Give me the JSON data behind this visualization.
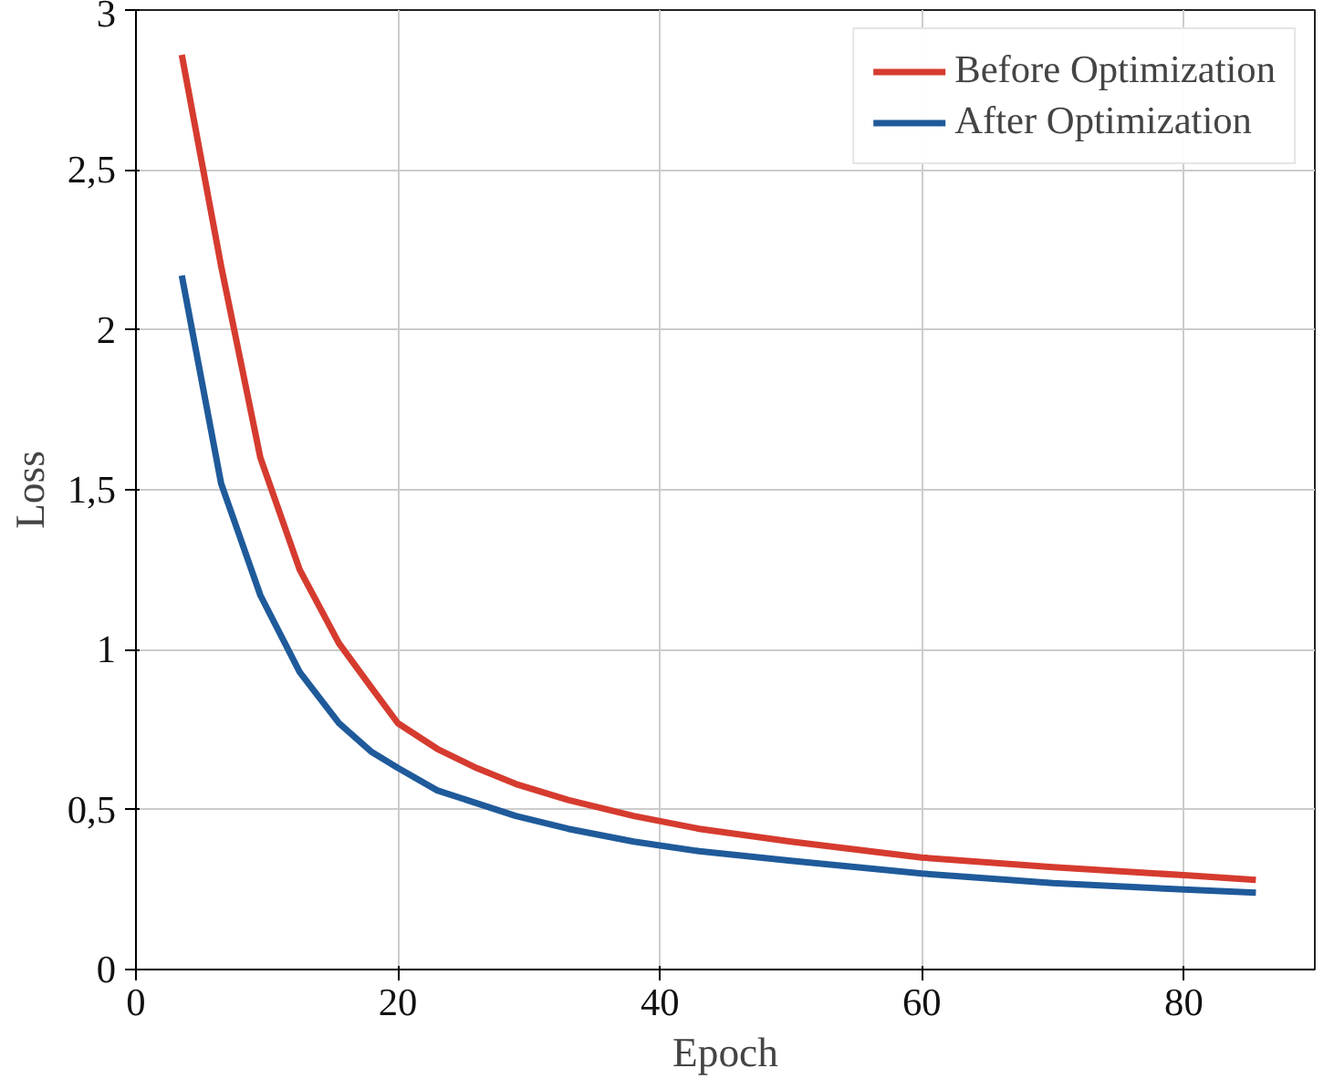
{
  "chart_data": {
    "type": "line",
    "xlabel": "Epoch",
    "ylabel": "Loss",
    "xlim": [
      0,
      90
    ],
    "ylim": [
      0,
      3
    ],
    "xticks": [
      0,
      20,
      40,
      60,
      80
    ],
    "yticks": [
      0,
      {
        "value": 0.5,
        "label": "0,5"
      },
      1,
      {
        "value": 1.5,
        "label": "1,5"
      },
      2,
      {
        "value": 2.5,
        "label": "2,5"
      },
      3
    ],
    "grid": true,
    "legend": "top right",
    "marker": "none",
    "line_style": "solid",
    "x": [
      3.5,
      6.5,
      9.5,
      12.5,
      15.5,
      18,
      20,
      23,
      26,
      29,
      33,
      38,
      43,
      50,
      60,
      70,
      80,
      85.5
    ],
    "series": [
      {
        "name": "Before Optimization",
        "color": "#d63b2f",
        "values": [
          2.86,
          2.2,
          1.6,
          1.25,
          1.02,
          0.88,
          0.77,
          0.69,
          0.63,
          0.58,
          0.53,
          0.48,
          0.44,
          0.4,
          0.35,
          0.32,
          0.295,
          0.28
        ]
      },
      {
        "name": "After Optimization",
        "color": "#1f5a9a",
        "values": [
          2.17,
          1.52,
          1.17,
          0.93,
          0.77,
          0.68,
          0.63,
          0.56,
          0.52,
          0.48,
          0.44,
          0.4,
          0.37,
          0.34,
          0.3,
          0.27,
          0.25,
          0.24
        ]
      }
    ]
  }
}
